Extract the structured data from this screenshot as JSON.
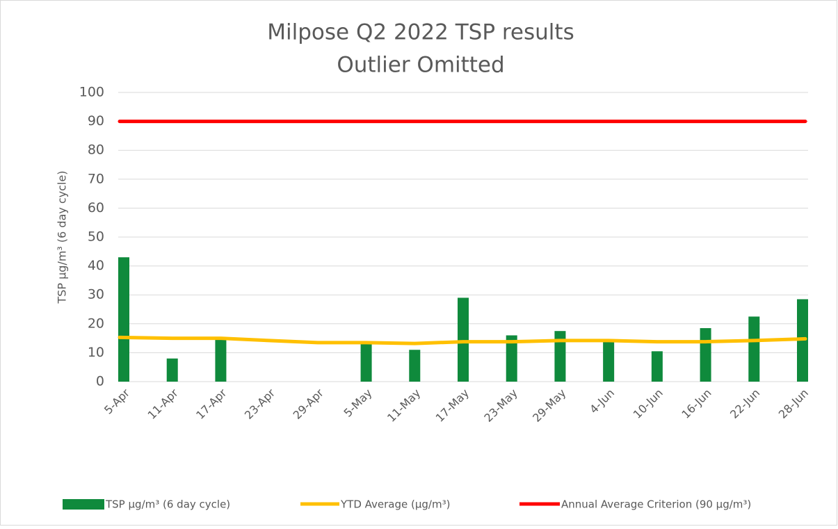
{
  "chart_data": {
    "type": "bar",
    "title": "Milpose Q2 2022 TSP results",
    "subtitle": "Outlier Omitted",
    "y_label": "TSP µg/m³ (6 day cycle)",
    "categories": [
      "5-Apr",
      "11-Apr",
      "17-Apr",
      "23-Apr",
      "29-Apr",
      "5-May",
      "11-May",
      "17-May",
      "23-May",
      "29-May",
      "4-Jun",
      "10-Jun",
      "16-Jun",
      "22-Jun",
      "28-Jun"
    ],
    "series": [
      {
        "name": "TSP µg/m³ (6 day cycle)",
        "type": "bar",
        "color": "#0f8a3c",
        "values": [
          43,
          8,
          15,
          null,
          null,
          14,
          11,
          29,
          16,
          17.5,
          14,
          10.5,
          18.5,
          22.5,
          28.5
        ]
      },
      {
        "name": "YTD  Average (µg/m³)",
        "type": "line",
        "color": "#ffc000",
        "values": [
          15.3,
          15,
          15,
          14.2,
          13.5,
          13.5,
          13.2,
          13.8,
          13.8,
          14.2,
          14.2,
          13.8,
          13.8,
          14.2,
          14.8
        ]
      },
      {
        "name": "Annual Average Criterion (90 µg/m³)",
        "type": "line",
        "color": "#ff0000",
        "values": [
          90,
          90,
          90,
          90,
          90,
          90,
          90,
          90,
          90,
          90,
          90,
          90,
          90,
          90,
          90
        ]
      }
    ],
    "ylim": [
      0,
      100
    ],
    "yticks": [
      0,
      10,
      20,
      30,
      40,
      50,
      60,
      70,
      80,
      90,
      100
    ],
    "grid": true,
    "legend": "bottom"
  }
}
